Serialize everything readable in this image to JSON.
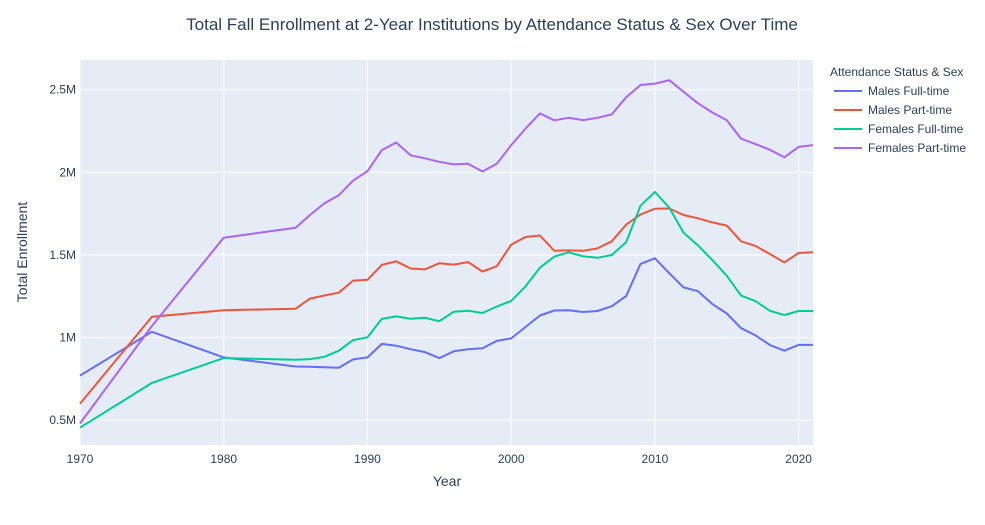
{
  "chart_data": {
    "type": "line",
    "title": "Total Fall Enrollment at 2-Year Institutions by Attendance Status & Sex Over Time",
    "xlabel": "Year",
    "ylabel": "Total Enrollment",
    "xlim": [
      1970,
      2021
    ],
    "ylim": [
      350000,
      2680000
    ],
    "x_ticks": [
      1970,
      1980,
      1990,
      2000,
      2010,
      2020
    ],
    "y_ticks": [
      {
        "value": 500000,
        "label": "0.5M"
      },
      {
        "value": 1000000,
        "label": "1M"
      },
      {
        "value": 1500000,
        "label": "1.5M"
      },
      {
        "value": 2000000,
        "label": "2M"
      },
      {
        "value": 2500000,
        "label": "2.5M"
      }
    ],
    "grid": true,
    "legend": {
      "title": "Attendance Status & Sex",
      "placement": "right"
    },
    "x": [
      1970,
      1975,
      1980,
      1985,
      1986,
      1987,
      1988,
      1989,
      1990,
      1991,
      1992,
      1993,
      1994,
      1995,
      1996,
      1997,
      1998,
      1999,
      2000,
      2001,
      2002,
      2003,
      2004,
      2005,
      2006,
      2007,
      2008,
      2009,
      2010,
      2011,
      2012,
      2013,
      2014,
      2015,
      2016,
      2017,
      2018,
      2019,
      2020,
      2021
    ],
    "series": [
      {
        "name": "Males Full-time",
        "color": "#636efa",
        "values": [
          770000,
          1035000,
          880000,
          825000,
          823000,
          820000,
          818000,
          868000,
          880000,
          962000,
          951000,
          930000,
          912000,
          876000,
          917000,
          930000,
          935000,
          980000,
          995000,
          1064000,
          1134000,
          1164000,
          1166000,
          1155000,
          1161000,
          1190000,
          1252000,
          1446000,
          1480000,
          1390000,
          1304000,
          1281000,
          1203000,
          1146000,
          1057000,
          1013000,
          955000,
          921000,
          956000,
          956000
        ]
      },
      {
        "name": "Males Part-time",
        "color": "#ef553b",
        "values": [
          600000,
          1126000,
          1166000,
          1175000,
          1236000,
          1255000,
          1272000,
          1345000,
          1350000,
          1440000,
          1462000,
          1418000,
          1413000,
          1450000,
          1442000,
          1457000,
          1400000,
          1432000,
          1563000,
          1609000,
          1618000,
          1525000,
          1528000,
          1525000,
          1540000,
          1583000,
          1684000,
          1745000,
          1780000,
          1781000,
          1742000,
          1722000,
          1697000,
          1678000,
          1583000,
          1555000,
          1506000,
          1455000,
          1512000,
          1517000
        ]
      },
      {
        "name": "Females Full-time",
        "color": "#00cc96",
        "values": [
          455000,
          726000,
          876000,
          866000,
          870000,
          884000,
          920000,
          985000,
          1002000,
          1113000,
          1128000,
          1114000,
          1120000,
          1099000,
          1156000,
          1163000,
          1149000,
          1188000,
          1222000,
          1310000,
          1423000,
          1490000,
          1516000,
          1492000,
          1483000,
          1500000,
          1578000,
          1798000,
          1881000,
          1786000,
          1635000,
          1558000,
          1469000,
          1374000,
          1254000,
          1221000,
          1162000,
          1137000,
          1161000,
          1161000
        ]
      },
      {
        "name": "Females Part-time",
        "color": "#ab63fa",
        "values": [
          480000,
          1070000,
          1604000,
          1665000,
          1742000,
          1812000,
          1861000,
          1950000,
          2007000,
          2135000,
          2181000,
          2103000,
          2085000,
          2064000,
          2048000,
          2052000,
          2005000,
          2052000,
          2165000,
          2265000,
          2357000,
          2315000,
          2330000,
          2316000,
          2330000,
          2351000,
          2455000,
          2529000,
          2537000,
          2558000,
          2487000,
          2418000,
          2362000,
          2315000,
          2204000,
          2171000,
          2137000,
          2091000,
          2154000,
          2165000
        ]
      }
    ]
  }
}
